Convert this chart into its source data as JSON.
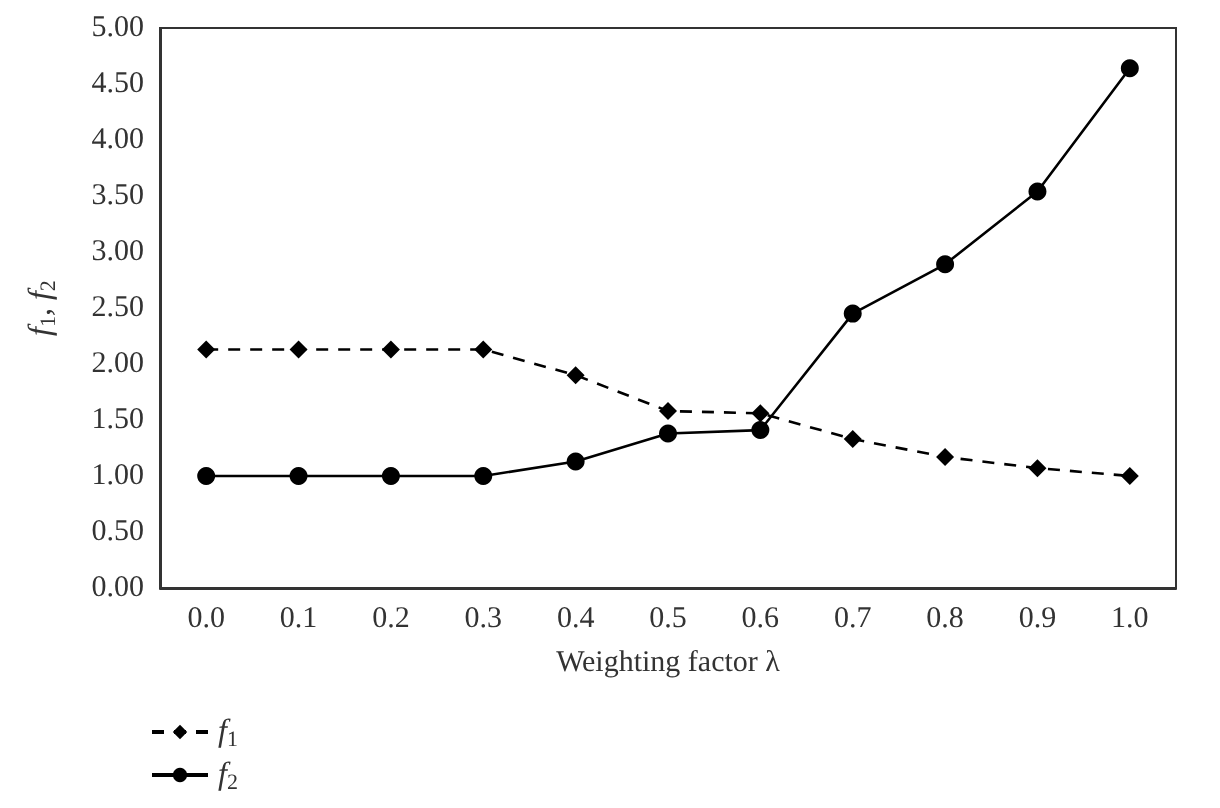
{
  "chart_data": {
    "type": "line",
    "xlabel": "Weighting factor λ",
    "ylabel": "f$_{1}$, f$_{2}$",
    "categories": [
      "0.0",
      "0.1",
      "0.2",
      "0.3",
      "0.4",
      "0.5",
      "0.6",
      "0.7",
      "0.8",
      "0.9",
      "1.0"
    ],
    "series": [
      {
        "name": "f$_{1}$",
        "color": "#000000",
        "line_style": "dashed",
        "marker": "diamond",
        "values": [
          2.13,
          2.13,
          2.13,
          2.13,
          1.9,
          1.58,
          1.56,
          1.33,
          1.17,
          1.07,
          1.0
        ]
      },
      {
        "name": "f$_{2}$",
        "color": "#000000",
        "line_style": "solid",
        "marker": "circle",
        "values": [
          1.0,
          1.0,
          1.0,
          1.0,
          1.13,
          1.38,
          1.41,
          2.45,
          2.89,
          3.54,
          4.64
        ]
      }
    ],
    "ylim": [
      0,
      5
    ],
    "yticks": [
      {
        "value": 0,
        "label": "0.00"
      },
      {
        "value": 0.5,
        "label": "0.50"
      },
      {
        "value": 1,
        "label": "1.00"
      },
      {
        "value": 1.5,
        "label": "1.50"
      },
      {
        "value": 2,
        "label": "2.00"
      },
      {
        "value": 2.5,
        "label": "2.50"
      },
      {
        "value": 3,
        "label": "3.00"
      },
      {
        "value": 3.5,
        "label": "3.50"
      },
      {
        "value": 4,
        "label": "4.00"
      },
      {
        "value": 4.5,
        "label": "4.50"
      },
      {
        "value": 5,
        "label": "5.00"
      }
    ],
    "grid": false,
    "legend": "bottom left"
  }
}
